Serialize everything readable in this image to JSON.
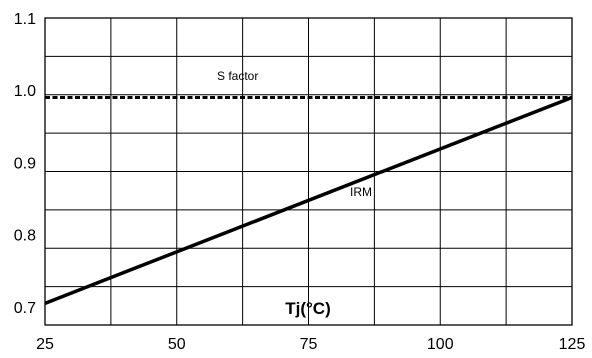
{
  "chart_data": {
    "type": "line",
    "title": "",
    "xlabel": "Tj(°C)",
    "ylabel": "",
    "xlim": [
      25,
      125
    ],
    "ylim": [
      0.675,
      1.1
    ],
    "xticks": [
      25,
      50,
      75,
      100,
      125
    ],
    "xtick_labels": [
      "25",
      "50",
      "75",
      "100",
      "125"
    ],
    "yticks": [
      0.7,
      0.8,
      0.9,
      1.0,
      1.1
    ],
    "ytick_labels": [
      "0.7",
      "0.8",
      "0.9",
      "1.0",
      "1.1"
    ],
    "grid": true,
    "series": [
      {
        "name": "S factor",
        "style": "dashed",
        "x": [
          25,
          125
        ],
        "y": [
          0.99,
          0.99
        ]
      },
      {
        "name": "IRM",
        "style": "solid",
        "x": [
          25,
          125
        ],
        "y": [
          0.705,
          0.99
        ]
      }
    ],
    "colors": {
      "line": "#000000",
      "grid": "#000000",
      "background": "#ffffff"
    }
  }
}
